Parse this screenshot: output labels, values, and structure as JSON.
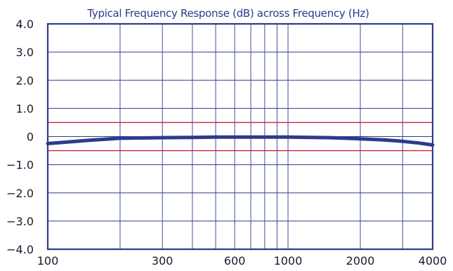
{
  "chart_data": {
    "type": "line",
    "title": "Typical Frequency Response (dB) across Frequency (Hz)",
    "xlabel": "",
    "ylabel": "",
    "x_scale": "log",
    "xlim": [
      100,
      4000
    ],
    "ylim": [
      -4.0,
      4.0
    ],
    "grid": true,
    "x_ticks": [
      100,
      300,
      600,
      1000,
      2000,
      4000
    ],
    "x_tick_labels": [
      "100",
      "300",
      "600",
      "1000",
      "2000",
      "4000"
    ],
    "x_gridlines": [
      200,
      300,
      400,
      500,
      600,
      700,
      800,
      900,
      1000,
      2000,
      3000
    ],
    "y_ticks": [
      4.0,
      3.0,
      2.0,
      1.0,
      0,
      -1.0,
      -2.0,
      -3.0,
      -4.0
    ],
    "y_tick_labels": [
      "4.0",
      "3.0",
      "2.0",
      "1.0",
      "0",
      "−1.0",
      "−2.0",
      "−3.0",
      "−4.0"
    ],
    "reference_lines": [
      {
        "y": 0.5,
        "color": "#c8243c"
      },
      {
        "y": -0.5,
        "color": "#c8243c"
      }
    ],
    "series": [
      {
        "color": "#2e3a8c",
        "x": [
          100,
          150,
          200,
          300,
          400,
          500,
          600,
          700,
          800,
          900,
          1000,
          1500,
          2000,
          2500,
          3000,
          3500,
          4000
        ],
        "y": [
          -0.25,
          -0.13,
          -0.06,
          -0.04,
          -0.03,
          -0.02,
          -0.02,
          -0.02,
          -0.02,
          -0.02,
          -0.02,
          -0.04,
          -0.08,
          -0.12,
          -0.17,
          -0.23,
          -0.3
        ]
      }
    ],
    "colors": {
      "frame": "#2e3a8c",
      "grid": "#2e3a8c",
      "title": "#2e3a8c",
      "tick_text": "#1a1a2e"
    }
  }
}
